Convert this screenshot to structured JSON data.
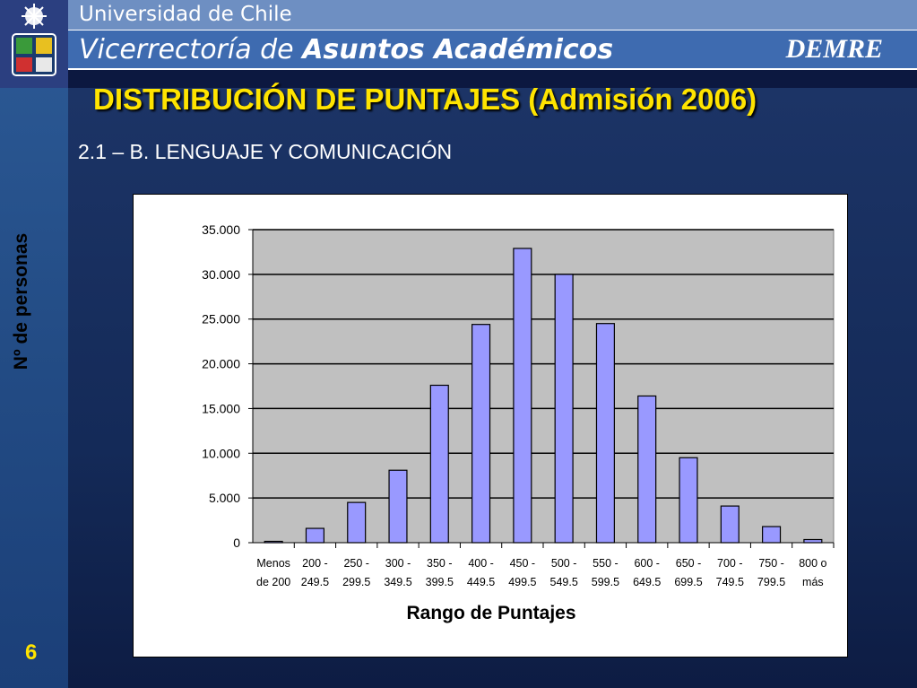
{
  "header": {
    "university": "Universidad de Chile",
    "vice_prefix": "Vicerrectoría de",
    "vice_bold": "Asuntos Académicos",
    "demre": "DEMRE"
  },
  "slide": {
    "title": "DISTRIBUCIÓN DE PUNTAJES (Admisión 2006)",
    "subtitle": "2.1 – B. LENGUAJE Y COMUNICACIÓN",
    "page_number": "6"
  },
  "colors": {
    "title": "#ffe400",
    "bar_fill": "#9999ff",
    "plot_bg": "#c0c0c0"
  },
  "chart_data": {
    "type": "bar",
    "categories": [
      [
        "Menos",
        "de 200"
      ],
      [
        "200 -",
        "249.5"
      ],
      [
        "250 -",
        "299.5"
      ],
      [
        "300 -",
        "349.5"
      ],
      [
        "350 -",
        "399.5"
      ],
      [
        "400 -",
        "449.5"
      ],
      [
        "450 -",
        "499.5"
      ],
      [
        "500 -",
        "549.5"
      ],
      [
        "550 -",
        "599.5"
      ],
      [
        "600 -",
        "649.5"
      ],
      [
        "650 -",
        "699.5"
      ],
      [
        "700 -",
        "749.5"
      ],
      [
        "750 -",
        "799.5"
      ],
      [
        "800 o",
        "más"
      ]
    ],
    "values": [
      150,
      1600,
      4500,
      8100,
      17600,
      24400,
      32900,
      30000,
      24500,
      16400,
      9500,
      4100,
      1800,
      350
    ],
    "xlabel": "Rango de Puntajes",
    "ylabel": "Nº de personas",
    "ylim": [
      0,
      35000
    ],
    "yticks": [
      0,
      5000,
      10000,
      15000,
      20000,
      25000,
      30000,
      35000
    ],
    "ytick_labels": [
      "0",
      "5.000",
      "10.000",
      "15.000",
      "20.000",
      "25.000",
      "30.000",
      "35.000"
    ],
    "grid": true,
    "legend": false
  }
}
